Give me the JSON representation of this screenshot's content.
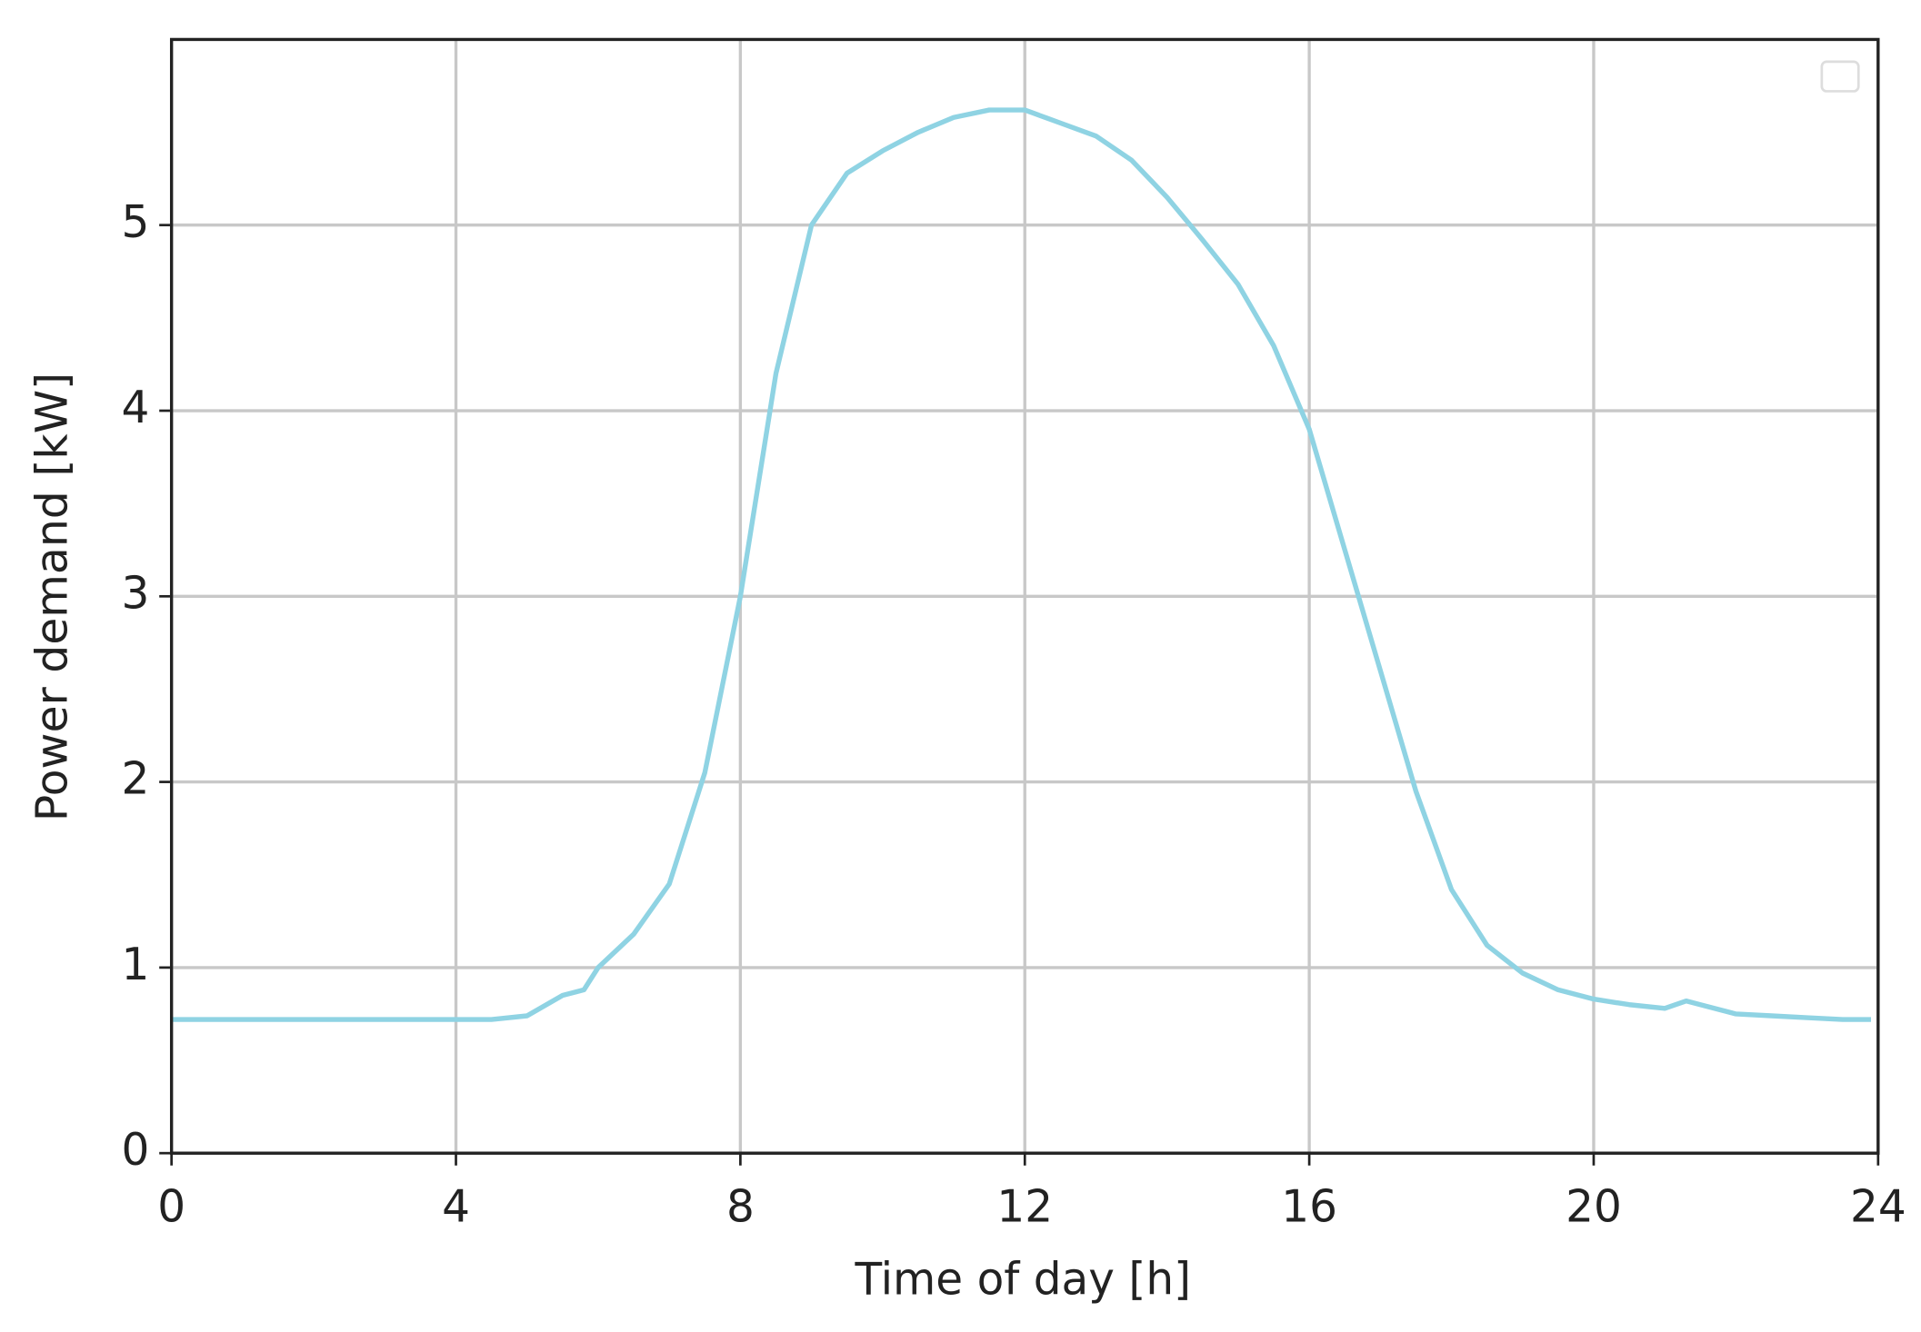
{
  "chart_data": {
    "type": "line",
    "xlabel": "Time of day [h]",
    "ylabel": "Power demand [kW]",
    "x": [
      0,
      0.5,
      1,
      1.5,
      2,
      2.5,
      3,
      3.5,
      4,
      4.5,
      5,
      5.5,
      5.8,
      6,
      6.5,
      7,
      7.5,
      8,
      8.5,
      9,
      9.5,
      10,
      10.5,
      11,
      11.5,
      12,
      12.5,
      13,
      13.5,
      14,
      14.5,
      15,
      15.5,
      16,
      16.5,
      17,
      17.5,
      18,
      18.5,
      19,
      19.5,
      20,
      20.5,
      21,
      21.3,
      21.5,
      22,
      22.5,
      23,
      23.5,
      23.9
    ],
    "series": [
      {
        "color": "#8fd3e3",
        "values": [
          0.72,
          0.72,
          0.72,
          0.72,
          0.72,
          0.72,
          0.72,
          0.72,
          0.72,
          0.72,
          0.74,
          0.85,
          0.88,
          1.0,
          1.18,
          1.45,
          2.05,
          3.0,
          4.2,
          5.0,
          5.28,
          5.4,
          5.5,
          5.58,
          5.62,
          5.62,
          5.55,
          5.48,
          5.35,
          5.15,
          4.92,
          4.68,
          4.35,
          3.9,
          3.25,
          2.6,
          1.95,
          1.42,
          1.12,
          0.97,
          0.88,
          0.83,
          0.8,
          0.78,
          0.82,
          0.8,
          0.75,
          0.74,
          0.73,
          0.72,
          0.72
        ]
      }
    ],
    "xlim": [
      0,
      24
    ],
    "xticks": [
      0,
      4,
      8,
      12,
      16,
      20,
      24
    ],
    "ylim": [
      0,
      6
    ],
    "yticks": [
      0,
      1,
      2,
      3,
      4,
      5
    ],
    "grid": true,
    "legend": "upper right"
  }
}
